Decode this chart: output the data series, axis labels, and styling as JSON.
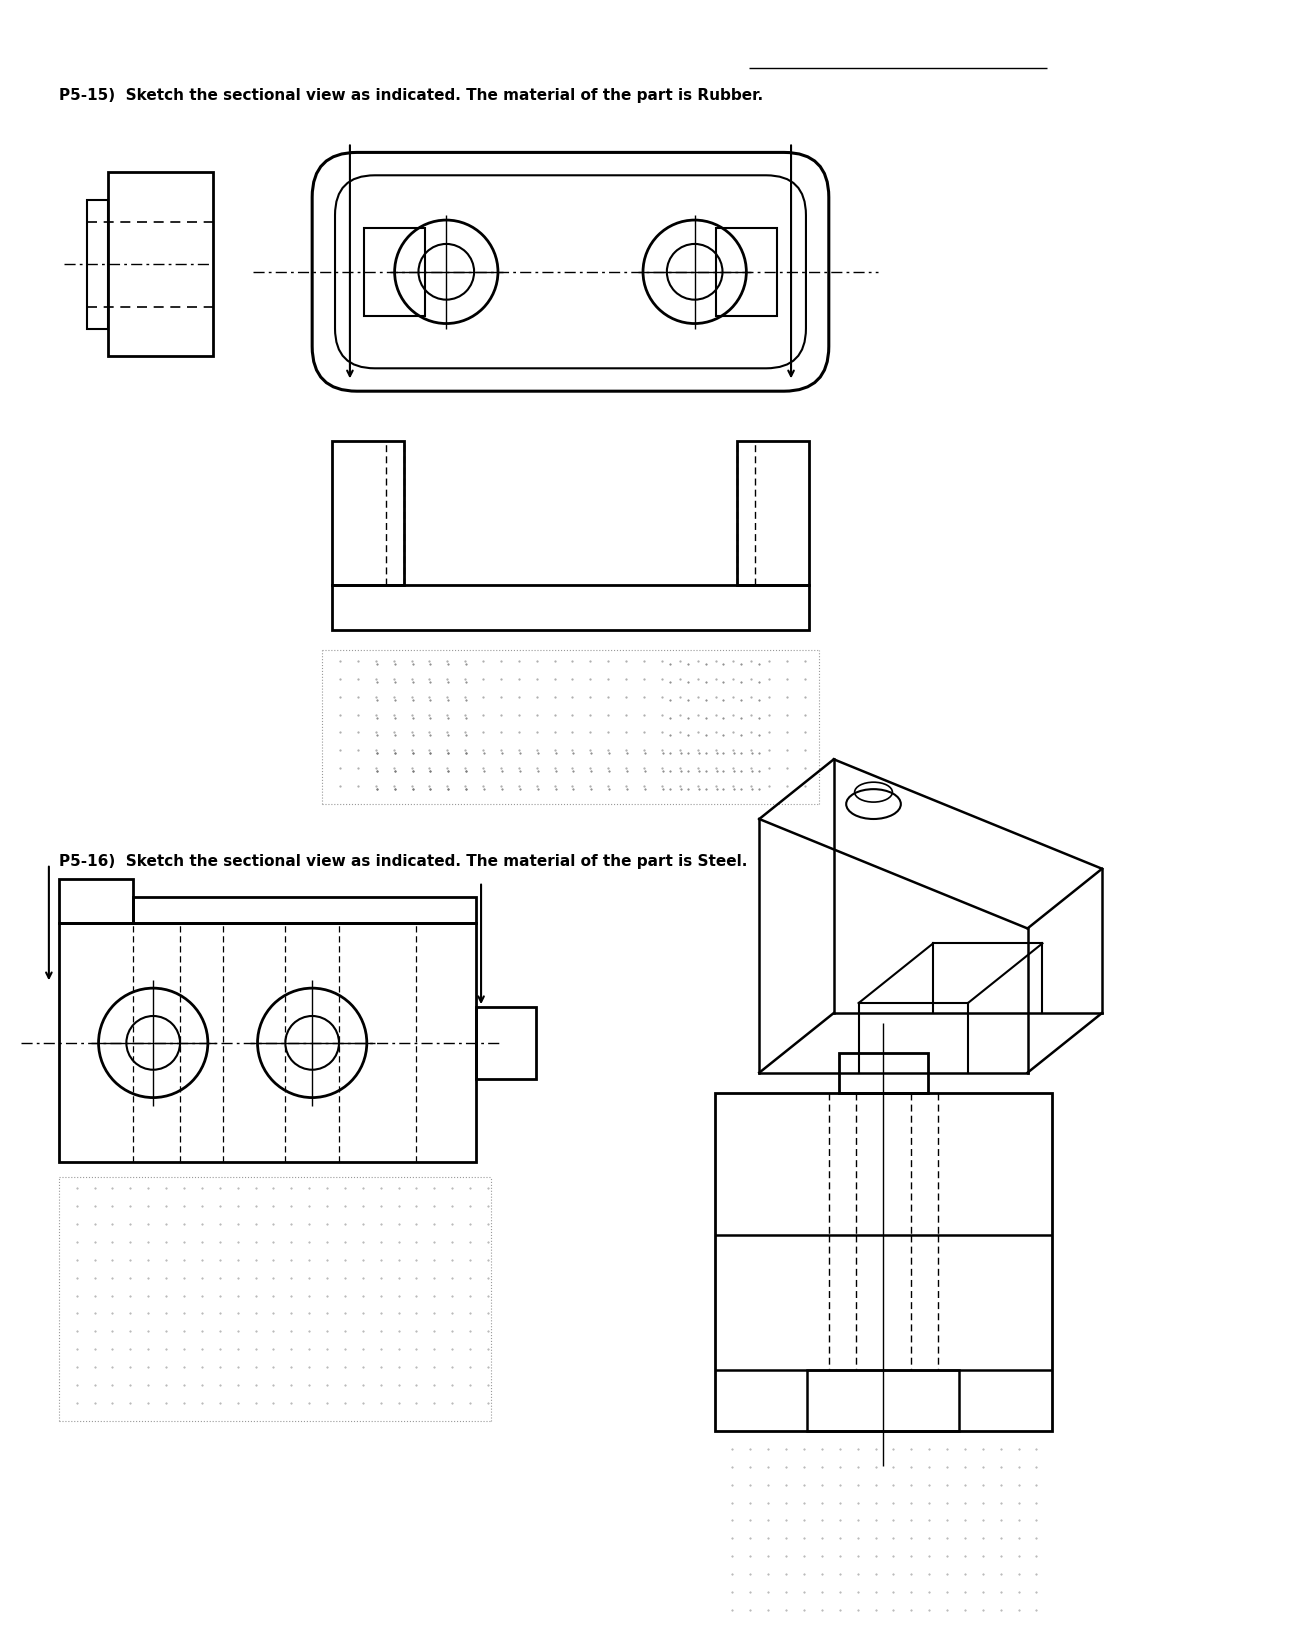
{
  "bg_color": "#ffffff",
  "title_p515": "P5-15)  Sketch the sectional view as indicated. The material of the part is Rubber.",
  "title_p516": "P5-16)  Sketch the sectional view as indicated. The material of the part is Steel.",
  "title_fontsize": 11,
  "line_color": "#000000",
  "dash_color": "#000000",
  "dot_color": "#aaaaaa"
}
